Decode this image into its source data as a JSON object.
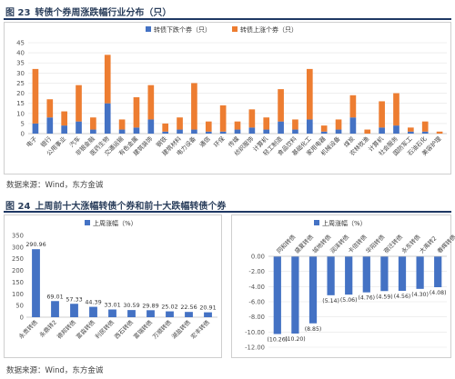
{
  "figure23": {
    "title_num": "图 23",
    "title": "转债个券周涨跌幅行业分布（只）",
    "source": "数据来源：Wind，东方金诚",
    "colors": {
      "down": "#4472c4",
      "up": "#ed7d31"
    },
    "chart_data": {
      "type": "bar",
      "stacked": true,
      "title": "",
      "xlabel": "",
      "ylabel": "",
      "ylim": [
        0,
        45
      ],
      "yticks": [
        0,
        5,
        10,
        15,
        20,
        25,
        30,
        35,
        40,
        45
      ],
      "grid": true,
      "legend": "top-center",
      "categories": [
        "电子",
        "银行",
        "公用事业",
        "汽车",
        "非银金融",
        "医药生物",
        "交通运输",
        "有色金属",
        "建筑装饰",
        "钢铁",
        "建筑材料",
        "电力设备",
        "通信",
        "环保",
        "传媒",
        "纺织服饰",
        "计算机",
        "轻工制造",
        "食品饮料",
        "基础化工",
        "家用电器",
        "机械设备",
        "煤炭",
        "农林牧渔",
        "计算机",
        "社会服务",
        "国防军工",
        "石油石化",
        "美容护理"
      ],
      "series": [
        {
          "name": "转债下跌个券（只）",
          "values": [
            5,
            8,
            4,
            6,
            2,
            15,
            2,
            3,
            7,
            1,
            2,
            2,
            1,
            1,
            2,
            3,
            2,
            6,
            2,
            7,
            1,
            2,
            8,
            0,
            3,
            4,
            1,
            1,
            0
          ]
        },
        {
          "name": "转债上涨个券（只）",
          "values": [
            27,
            9,
            7,
            18,
            6,
            24,
            5,
            15,
            17,
            4,
            6,
            23,
            5,
            13,
            4,
            9,
            6,
            16,
            5,
            25,
            3,
            5,
            11,
            2,
            13,
            16,
            2,
            5,
            1
          ]
        }
      ]
    }
  },
  "figure24": {
    "title_num": "图 24",
    "title": "上周前十大涨幅转债个券和前十大跌幅转债个券",
    "source": "数据来源：Wind，东方金诚",
    "color": "#4472c4",
    "left_chart": {
      "chart_data": {
        "type": "bar",
        "title": "",
        "xlabel": "",
        "ylabel": "",
        "legend": "top-center",
        "ylim": [
          0,
          350
        ],
        "yticks": [
          0,
          50,
          100,
          150,
          200,
          250,
          300,
          350
        ],
        "grid": false,
        "categories": [
          "永贵转债",
          "永鼎转2",
          "德邦转债",
          "富淼转债",
          "利民转债",
          "西石转债",
          "富瑞转债",
          "万顺转债",
          "湖盐转债",
          "宏丰转债"
        ],
        "series": [
          {
            "name": "上周涨幅（%）",
            "values": [
              290.96,
              69.01,
              57.33,
              44.39,
              33.01,
              30.59,
              29.89,
              25.02,
              22.56,
              20.91
            ],
            "labels": [
              "290.96",
              "69.01",
              "57.33",
              "44.39",
              "33.01",
              "30.59",
              "29.89",
              "25.02",
              "22.56",
              "20.91"
            ]
          }
        ]
      }
    },
    "right_chart": {
      "chart_data": {
        "type": "bar",
        "title": "",
        "xlabel": "",
        "ylabel": "",
        "legend": "top-center",
        "ylim": [
          -12,
          0
        ],
        "yticks": [
          0,
          -2,
          -4,
          -6,
          -8,
          -10,
          -12
        ],
        "ytick_labels": [
          "0.00",
          "-2.00",
          "-4.00",
          "-6.00",
          "-8.00",
          "-10.00",
          "-12.00"
        ],
        "grid": true,
        "categories": [
          "同和转债",
          "盛夏转债",
          "城地转债",
          "润泽转债",
          "卡倍转债",
          "华阳转债",
          "宿迁转债",
          "永东转债",
          "大禹转2",
          "春辉转债"
        ],
        "series": [
          {
            "name": "上周涨幅（%）",
            "values": [
              -10.26,
              -10.2,
              -8.85,
              -5.14,
              -5.06,
              -4.76,
              -4.59,
              -4.56,
              -4.3,
              -4.08
            ],
            "labels": [
              "(10.26)",
              "(10.20)",
              "(8.85)",
              "(5.14)",
              "(5.06)",
              "(4.76)",
              "(4.59)",
              "(4.56)",
              "(4.30)",
              "(4.08)"
            ]
          }
        ]
      }
    }
  }
}
